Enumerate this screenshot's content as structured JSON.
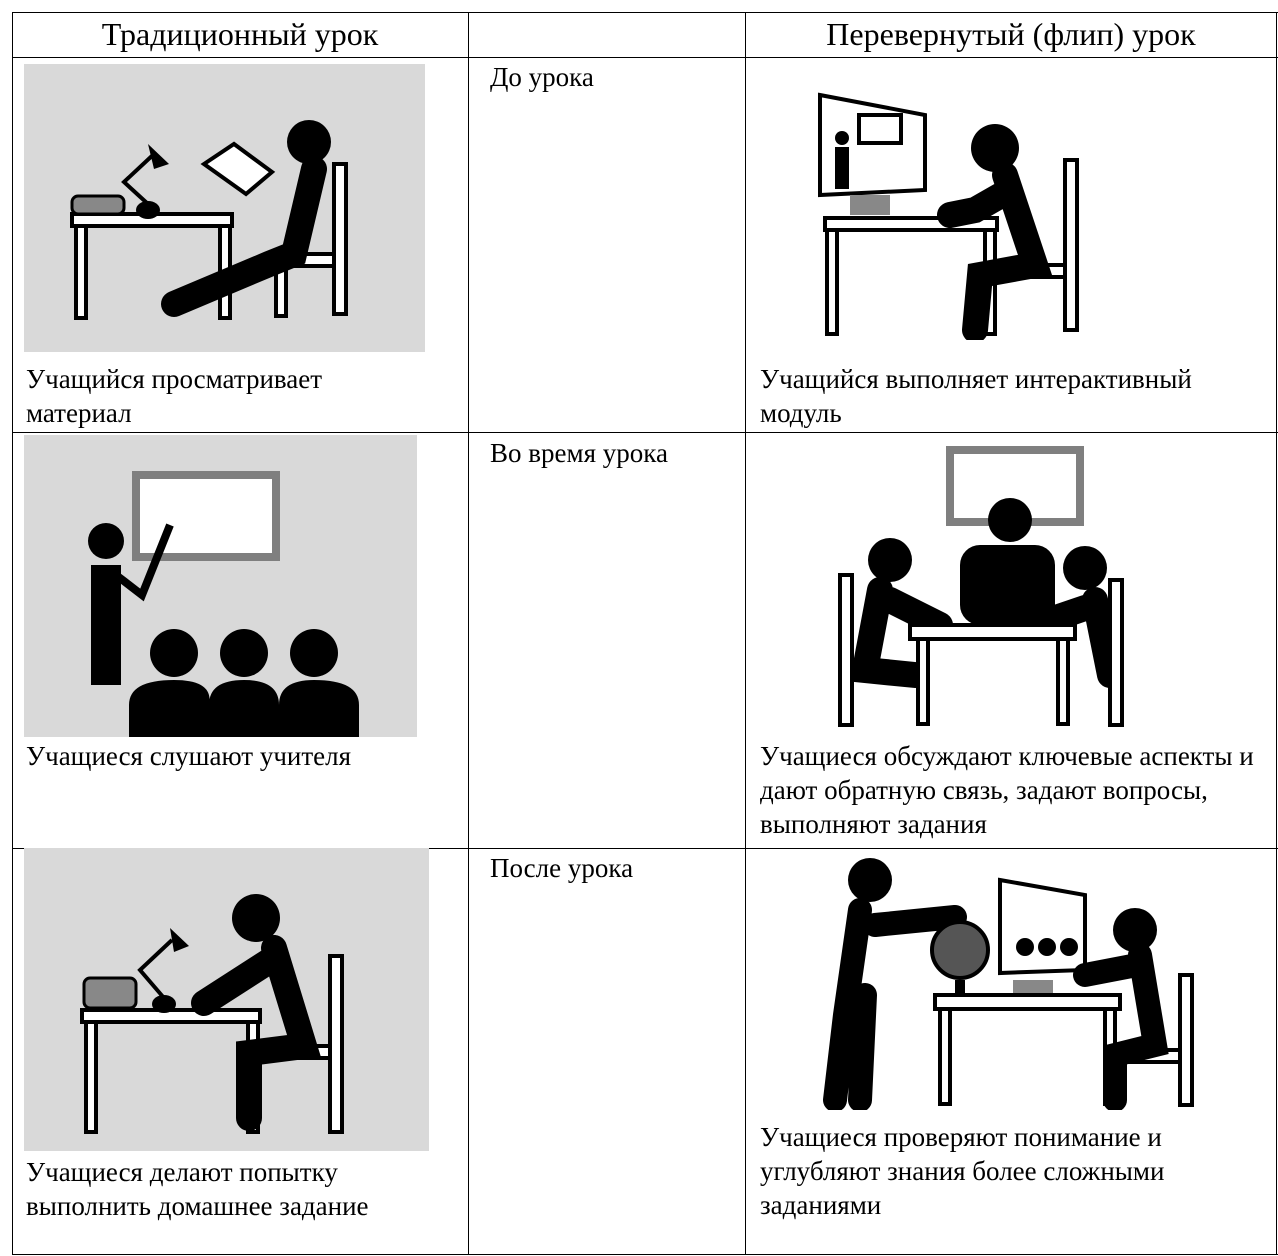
{
  "table": {
    "header": {
      "traditional": "Традиционный урок",
      "flipped": "Перевернутый (флип) урок"
    },
    "rows": [
      {
        "stage": "До урока",
        "traditional": "Учащийся просматривает материал",
        "flipped": "Учащийся выполняет интерактивный модуль"
      },
      {
        "stage": "Во время урока",
        "traditional": "Учащиеся слушают учителя",
        "flipped": "Учащиеся обсуждают ключевые аспекты и дают обратную связь, задают вопросы, выполняют задания"
      },
      {
        "stage": "После урока",
        "traditional": "Учащиеся делают попытку выполнить домашнее задание",
        "flipped": "Учащиеся проверяют понимание и углубляют знания более сложными заданиями"
      }
    ]
  }
}
